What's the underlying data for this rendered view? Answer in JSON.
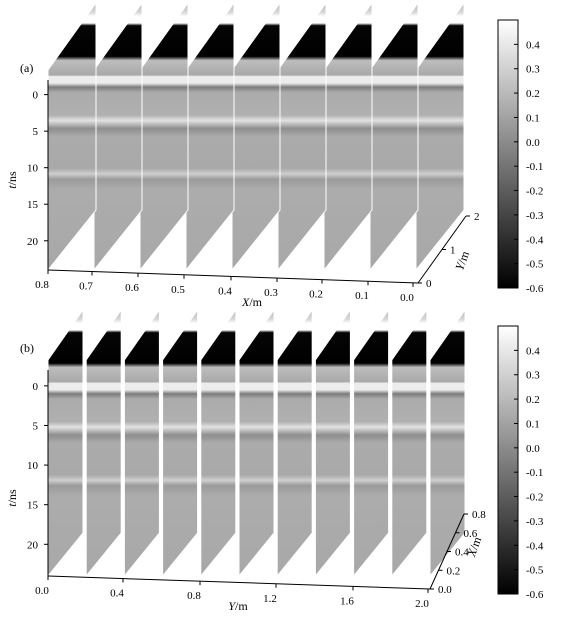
{
  "chart_data": [
    {
      "type": "heatmap",
      "panel_label": "(a)",
      "slice_axis": "x",
      "slice_positions": [
        0.8,
        0.7,
        0.6,
        0.5,
        0.4,
        0.3,
        0.2,
        0.1,
        0.0
      ],
      "x_ticks": [
        "0.8",
        "0.7",
        "0.6",
        "0.5",
        "0.4",
        "0.3",
        "0.2",
        "0.1",
        "0.0"
      ],
      "xlabel_var": "X",
      "xlabel_unit": "/m",
      "depth_ticks": [
        "0",
        "1",
        "2"
      ],
      "depth_var": "Y",
      "depth_unit": "/m",
      "t_ticks": [
        "0",
        "5",
        "10",
        "15",
        "20"
      ],
      "tlabel_var": "t",
      "tlabel_unit": "/ns",
      "t_range": [
        -2,
        24
      ],
      "colorbar_ticks": [
        "0.4",
        "0.3",
        "0.2",
        "0.1",
        "0.0",
        "-0.1",
        "-0.2",
        "-0.3",
        "-0.4",
        "-0.5",
        "-0.6"
      ],
      "colorbar_range": [
        -0.6,
        0.5
      ],
      "colormap": "grayscale"
    },
    {
      "type": "heatmap",
      "panel_label": "(b)",
      "slice_axis": "y",
      "slice_positions": [
        0.0,
        0.2,
        0.4,
        0.6,
        0.8,
        1.0,
        1.2,
        1.4,
        1.6,
        1.8,
        2.0
      ],
      "x_ticks": [
        "0.0",
        "0.4",
        "0.8",
        "1.2",
        "1.6",
        "2.0"
      ],
      "xlabel_var": "Y",
      "xlabel_unit": "/m",
      "depth_ticks": [
        "0.0",
        "0.2",
        "0.4",
        "0.6",
        "0.8"
      ],
      "depth_var": "X",
      "depth_unit": "/m",
      "t_ticks": [
        "0",
        "5",
        "10",
        "15",
        "20"
      ],
      "tlabel_var": "t",
      "tlabel_unit": "/ns",
      "t_range": [
        -2,
        24
      ],
      "colorbar_ticks": [
        "0.4",
        "0.3",
        "0.2",
        "0.1",
        "0.0",
        "-0.1",
        "-0.2",
        "-0.3",
        "-0.4",
        "-0.5",
        "-0.6"
      ],
      "colorbar_range": [
        -0.6,
        0.5
      ],
      "colormap": "grayscale"
    }
  ]
}
